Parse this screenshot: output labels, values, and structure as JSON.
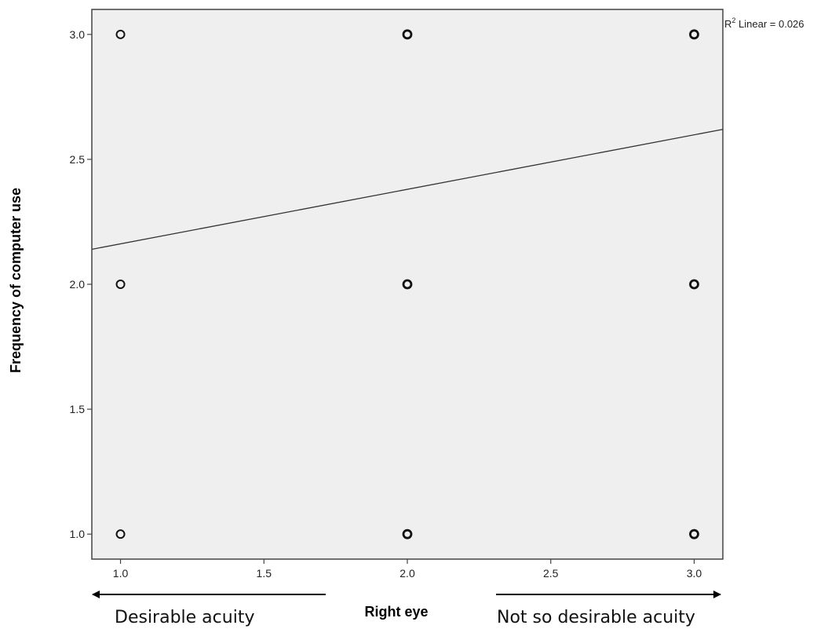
{
  "chart_data": {
    "type": "scatter",
    "xlabel": "Right eye",
    "ylabel": "Frequency of computer use",
    "xlim": [
      0.9,
      3.1
    ],
    "ylim": [
      0.9,
      3.1
    ],
    "x_ticks": [
      "1.0",
      "1.5",
      "2.0",
      "2.5",
      "3.0"
    ],
    "y_ticks": [
      "1.0",
      "1.5",
      "2.0",
      "2.5",
      "3.0"
    ],
    "points": [
      {
        "x": 1.0,
        "y": 1.0
      },
      {
        "x": 1.0,
        "y": 2.0
      },
      {
        "x": 1.0,
        "y": 3.0
      },
      {
        "x": 2.0,
        "y": 1.0
      },
      {
        "x": 2.0,
        "y": 2.0
      },
      {
        "x": 2.0,
        "y": 3.0
      },
      {
        "x": 3.0,
        "y": 1.0
      },
      {
        "x": 3.0,
        "y": 2.0
      },
      {
        "x": 3.0,
        "y": 3.0
      }
    ],
    "fit_line": {
      "type": "linear",
      "x": [
        0.9,
        3.1
      ],
      "y": [
        2.14,
        2.62
      ]
    },
    "fit_label": {
      "prefix": "R",
      "sup": "2",
      "suffix": " Linear = 0.026"
    },
    "arrow_labels": {
      "left": "Desirable acuity",
      "right": "Not so desirable acuity"
    },
    "grid": false,
    "colors": {
      "plot_bg": "#efefef",
      "axis": "#444444",
      "marker": "#111111"
    }
  }
}
